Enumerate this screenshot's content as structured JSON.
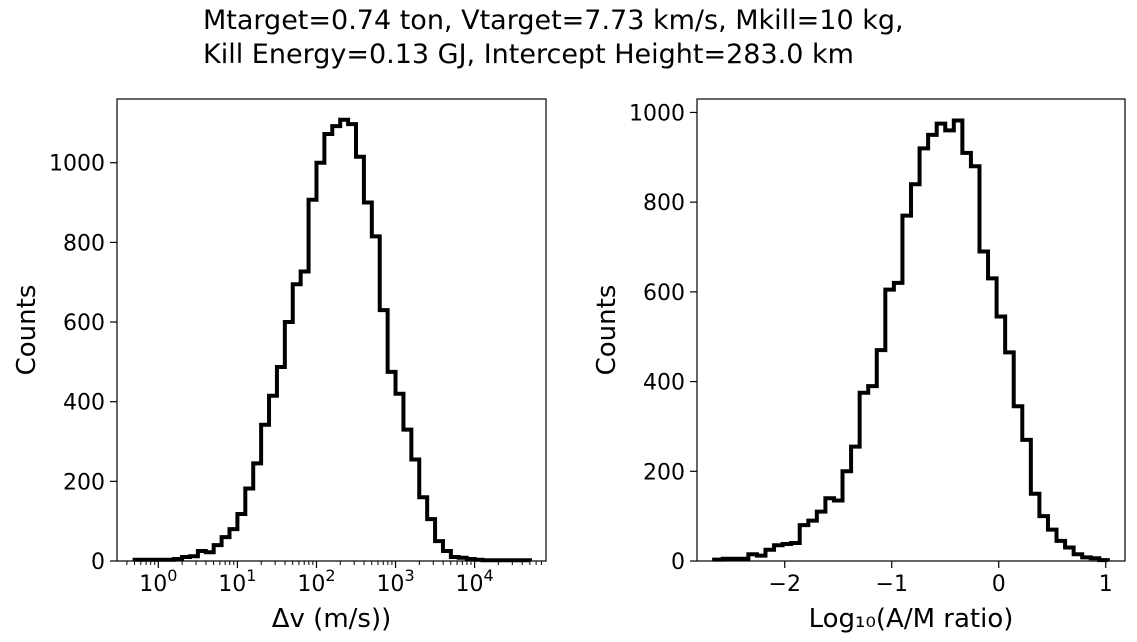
{
  "title_lines": [
    "Mtarget=0.74 ton, Vtarget=7.73 km/s, Mkill=10 kg,",
    "Kill Energy=0.13 GJ, Intercept Height=283.0 km"
  ],
  "chart_data": [
    {
      "type": "histogram",
      "style": "step",
      "color": "#000000",
      "xlabel": "Δv (m/s))",
      "ylabel": "Counts",
      "xscale": "log",
      "xlim": [
        0.3,
        80000
      ],
      "ylim": [
        0,
        1160
      ],
      "x_tick_labels": [
        "10^0",
        "10^1",
        "10^2",
        "10^3",
        "10^4"
      ],
      "y_tick_labels": [
        "0",
        "200",
        "400",
        "600",
        "800",
        "1000"
      ],
      "bin_edges_log10": [
        -0.3,
        -0.2,
        -0.1,
        0.0,
        0.1,
        0.2,
        0.3,
        0.4,
        0.5,
        0.6,
        0.7,
        0.8,
        0.9,
        1.0,
        1.1,
        1.2,
        1.3,
        1.4,
        1.5,
        1.6,
        1.7,
        1.8,
        1.9,
        2.0,
        2.1,
        2.2,
        2.3,
        2.4,
        2.5,
        2.6,
        2.7,
        2.8,
        2.9,
        3.0,
        3.1,
        3.2,
        3.3,
        3.4,
        3.5,
        3.6,
        3.7,
        3.8,
        3.9,
        4.0,
        4.1,
        4.2,
        4.3,
        4.4,
        4.5,
        4.6,
        4.7
      ],
      "counts": [
        3,
        3,
        3,
        3,
        3,
        5,
        10,
        12,
        25,
        22,
        40,
        60,
        80,
        118,
        182,
        245,
        342,
        415,
        487,
        600,
        695,
        727,
        907,
        1000,
        1072,
        1092,
        1108,
        1097,
        1015,
        900,
        815,
        630,
        475,
        420,
        330,
        255,
        160,
        105,
        50,
        25,
        10,
        8,
        5,
        3,
        2,
        2,
        2,
        2,
        2,
        2
      ]
    },
    {
      "type": "histogram",
      "style": "step",
      "color": "#000000",
      "xlabel": "Log₁₀(A/M ratio)",
      "ylabel": "Counts",
      "xlim": [
        -2.82,
        1.18
      ],
      "ylim": [
        0,
        1030
      ],
      "x_tick_labels": [
        "−2",
        "−1",
        "0",
        "1"
      ],
      "y_tick_labels": [
        "0",
        "200",
        "400",
        "600",
        "800",
        "1000"
      ],
      "bin_edges": [
        -2.66,
        -2.58,
        -2.5,
        -2.42,
        -2.34,
        -2.26,
        -2.18,
        -2.1,
        -2.02,
        -1.94,
        -1.86,
        -1.78,
        -1.7,
        -1.62,
        -1.54,
        -1.46,
        -1.38,
        -1.3,
        -1.22,
        -1.14,
        -1.06,
        -0.98,
        -0.9,
        -0.82,
        -0.74,
        -0.66,
        -0.58,
        -0.5,
        -0.42,
        -0.34,
        -0.26,
        -0.18,
        -0.1,
        -0.02,
        0.06,
        0.14,
        0.22,
        0.3,
        0.38,
        0.46,
        0.54,
        0.62,
        0.7,
        0.78,
        0.86,
        0.94,
        1.02
      ],
      "counts": [
        3,
        5,
        5,
        5,
        15,
        12,
        25,
        35,
        38,
        40,
        80,
        90,
        110,
        140,
        135,
        200,
        255,
        375,
        390,
        470,
        605,
        620,
        770,
        840,
        920,
        950,
        975,
        960,
        982,
        910,
        880,
        690,
        630,
        545,
        465,
        345,
        270,
        150,
        100,
        70,
        45,
        30,
        15,
        8,
        6,
        2
      ]
    }
  ]
}
